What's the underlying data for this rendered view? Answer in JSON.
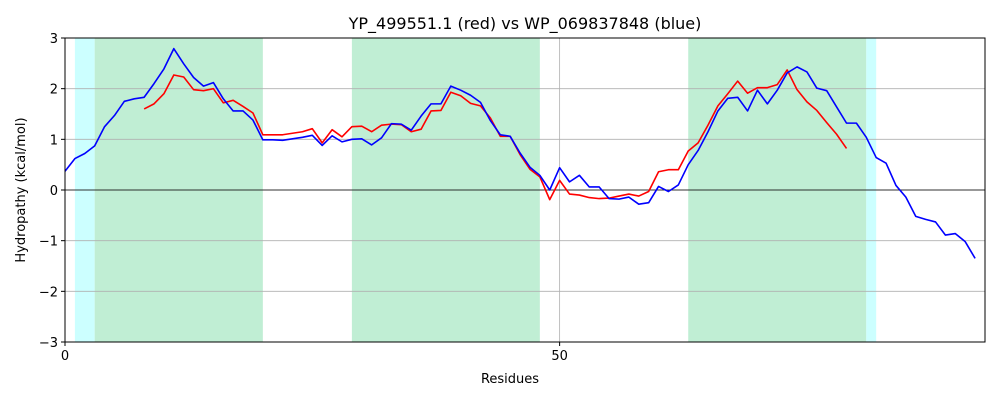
{
  "chart_data": {
    "type": "line",
    "title": "YP_499551.1 (red) vs WP_069837848 (blue)",
    "xlabel": "Residues",
    "ylabel": "Hydropathy (kcal/mol)",
    "xlim": [
      0,
      93
    ],
    "ylim": [
      -3,
      3
    ],
    "xticks": [
      0,
      50
    ],
    "yticks": [
      -3,
      -2,
      -1,
      0,
      1,
      2,
      3
    ],
    "grid": true,
    "zero_line": true,
    "regions": [
      {
        "x0": 1,
        "x1": 3,
        "color": "#ccffff"
      },
      {
        "x0": 3,
        "x1": 20,
        "color": "#c0eed4"
      },
      {
        "x0": 29,
        "x1": 48,
        "color": "#c0eed4"
      },
      {
        "x0": 63,
        "x1": 81,
        "color": "#c0eed4"
      },
      {
        "x0": 81,
        "x1": 82,
        "color": "#ccffff"
      }
    ],
    "series": [
      {
        "name": "",
        "color": "#ff0000",
        "x": [
          8,
          9,
          10,
          11,
          12,
          13,
          14,
          15,
          16,
          17,
          18,
          19,
          20,
          21,
          22,
          23,
          24,
          25,
          26,
          27,
          28,
          29,
          30,
          31,
          32,
          33,
          34,
          35,
          36,
          37,
          38,
          39,
          40,
          41,
          42,
          43,
          44,
          45,
          46,
          47,
          48,
          49,
          50,
          51,
          52,
          53,
          54,
          55,
          56,
          57,
          58,
          59,
          60,
          61,
          62,
          63,
          64,
          65,
          66,
          67,
          68,
          69,
          70,
          71,
          72,
          73,
          74,
          75,
          76,
          77,
          78,
          79
        ],
        "y": [
          1.6,
          1.7,
          1.9,
          2.27,
          2.23,
          1.98,
          1.96,
          2.0,
          1.72,
          1.77,
          1.65,
          1.52,
          1.09,
          1.09,
          1.09,
          1.12,
          1.15,
          1.21,
          0.93,
          1.19,
          1.05,
          1.25,
          1.26,
          1.15,
          1.28,
          1.3,
          1.29,
          1.15,
          1.2,
          1.56,
          1.57,
          1.93,
          1.86,
          1.71,
          1.66,
          1.42,
          1.06,
          1.06,
          0.7,
          0.41,
          0.26,
          -0.19,
          0.19,
          -0.08,
          -0.1,
          -0.15,
          -0.17,
          -0.16,
          -0.12,
          -0.08,
          -0.12,
          -0.03,
          0.36,
          0.4,
          0.4,
          0.77,
          0.93,
          1.28,
          1.66,
          1.9,
          2.15,
          1.91,
          2.02,
          2.02,
          2.08,
          2.37,
          1.98,
          1.74,
          1.57,
          1.33,
          1.1,
          0.82
        ]
      },
      {
        "name": "",
        "color": "#0000ff",
        "x": [
          0,
          1,
          2,
          3,
          4,
          5,
          6,
          7,
          8,
          9,
          10,
          11,
          12,
          13,
          14,
          15,
          16,
          17,
          18,
          19,
          20,
          21,
          22,
          23,
          24,
          25,
          26,
          27,
          28,
          29,
          30,
          31,
          32,
          33,
          34,
          35,
          36,
          37,
          38,
          39,
          40,
          41,
          42,
          43,
          44,
          45,
          46,
          47,
          48,
          49,
          50,
          51,
          52,
          53,
          54,
          55,
          56,
          57,
          58,
          59,
          60,
          61,
          62,
          63,
          64,
          65,
          66,
          67,
          68,
          69,
          70,
          71,
          72,
          73,
          74,
          75,
          76,
          77,
          78,
          79,
          80,
          81,
          82,
          83,
          84,
          85,
          86,
          87,
          88,
          89,
          90,
          91,
          92
        ],
        "y": [
          0.37,
          0.62,
          0.72,
          0.87,
          1.25,
          1.47,
          1.75,
          1.8,
          1.83,
          2.1,
          2.39,
          2.79,
          2.49,
          2.22,
          2.05,
          2.12,
          1.8,
          1.56,
          1.56,
          1.38,
          0.99,
          0.99,
          0.98,
          1.01,
          1.04,
          1.08,
          0.88,
          1.07,
          0.95,
          1.0,
          1.01,
          0.89,
          1.03,
          1.31,
          1.3,
          1.18,
          1.46,
          1.7,
          1.7,
          2.05,
          1.97,
          1.87,
          1.73,
          1.37,
          1.09,
          1.06,
          0.73,
          0.45,
          0.29,
          0.0,
          0.44,
          0.16,
          0.29,
          0.06,
          0.06,
          -0.17,
          -0.18,
          -0.14,
          -0.28,
          -0.25,
          0.07,
          -0.03,
          0.1,
          0.5,
          0.78,
          1.15,
          1.56,
          1.81,
          1.83,
          1.56,
          1.97,
          1.7,
          1.97,
          2.31,
          2.43,
          2.33,
          2.01,
          1.96,
          1.64,
          1.32,
          1.32,
          1.04,
          0.64,
          0.53,
          0.09,
          -0.14,
          -0.52,
          -0.58,
          -0.63,
          -0.89,
          -0.86,
          -1.02,
          -1.35
        ]
      }
    ]
  }
}
